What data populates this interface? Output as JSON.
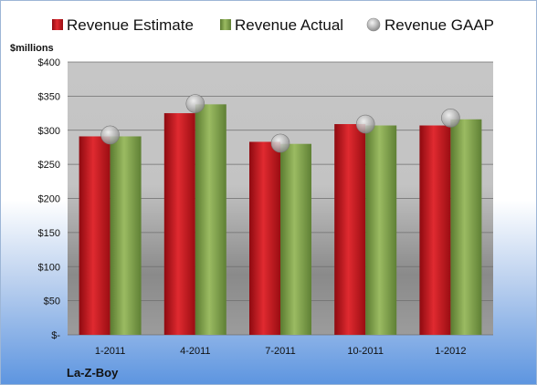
{
  "chart_data": {
    "type": "bar",
    "categories": [
      "1-2011",
      "4-2011",
      "7-2011",
      "10-2011",
      "1-2012"
    ],
    "series": [
      {
        "name": "Revenue Estimate",
        "values": [
          291,
          325,
          283,
          309,
          307
        ],
        "color": "#c8141c",
        "mark": "bar"
      },
      {
        "name": "Revenue Actual",
        "values": [
          291,
          338,
          280,
          307,
          316
        ],
        "color": "#7fa24a",
        "mark": "bar"
      },
      {
        "name": "Revenue GAAP",
        "values": [
          293,
          339,
          281,
          309,
          318
        ],
        "color": "#c9c9c9",
        "mark": "marker"
      }
    ],
    "ylim": [
      0,
      400
    ],
    "yticks": [
      0,
      50,
      100,
      150,
      200,
      250,
      300,
      350,
      400
    ],
    "ytick_labels": [
      "$-",
      "$50",
      "$100",
      "$150",
      "$200",
      "$250",
      "$300",
      "$350",
      "$400"
    ],
    "y_unit_label": "$millions",
    "company": "La-Z-Boy",
    "grid": true,
    "legend_position": "top"
  }
}
